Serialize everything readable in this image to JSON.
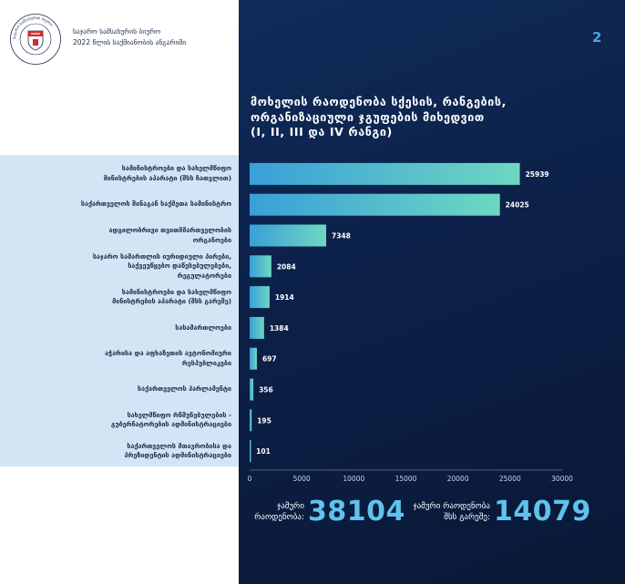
{
  "header": {
    "org_line1": "საჯარო სამსახურის ბიურო",
    "org_line2": "2022 წლის საქმიანობის ანგარიში",
    "page_number": "2",
    "logo_ring_text": "საჯარო სამსახურის ბიურო"
  },
  "colors": {
    "bar_start": "#3a9fd8",
    "bar_end": "#6ed7c2",
    "panel_bg": "#0c2048",
    "accent": "#5fc3ec"
  },
  "chart_data": {
    "type": "bar",
    "orientation": "horizontal",
    "title": "მოხელის რაოდენობა სქესის, რანგების, ორგანიზაციული ჯგუფების მიხედვით (I, II, III და IV რანგი)",
    "title_lines": [
      "მოხელის რაოდენობა სქესის, რანგების,",
      "ორგანიზაციული ჯგუფების მიხედვით",
      "(I, II, III და IV რანგი)"
    ],
    "categories": [
      [
        "სამინისტროები და სახელმწიფო",
        "მინისტრების აპარატი (შსს ჩათვლით)"
      ],
      [
        "საქართველოს შინაგან საქმეთა სამინისტრო"
      ],
      [
        "ადგილობრივი თვითმმართველობის",
        "ორგანოები"
      ],
      [
        "საჯარო სამართლის იურიდიული პირები,",
        "საქვეუწყებო დაწესებულებები,",
        "რეგულატორები"
      ],
      [
        "სამინისტროები და სახელმწიფო",
        "მინისტრების აპარატი (შსს გარეშე)"
      ],
      [
        "სასამართლოები"
      ],
      [
        "აჭარისა და აფხაზეთის ავტონომიური",
        "რესპუბლიკები"
      ],
      [
        "საქართველოს პარლამენტი"
      ],
      [
        "სახელმწიფო რწმუნებულების -",
        "გუბერნატორების ადმინისტრაციები"
      ],
      [
        "საქართველოს მთავრობისა და",
        "პრეზიდენტის ადმინისტრაციები"
      ]
    ],
    "values": [
      25939,
      24025,
      7348,
      2084,
      1914,
      1384,
      697,
      356,
      195,
      101
    ],
    "value_labels": [
      "25939",
      "24025",
      "7348",
      "2084",
      "1914",
      "1384",
      "697",
      "356",
      "195",
      "101"
    ],
    "xlim": [
      0,
      30000
    ],
    "xticks": [
      0,
      5000,
      10000,
      15000,
      20000,
      25000,
      30000
    ],
    "xtick_labels": [
      "0",
      "5000",
      "10000",
      "15000",
      "20000",
      "25000",
      "30000"
    ],
    "grid": false,
    "legend": "none"
  },
  "totals": {
    "total_label_line1": "ჯამური",
    "total_label_line2": "რაოდენობა:",
    "total_value": "38104",
    "mia_label_line1": "ჯამური რაოდენობა",
    "mia_label_line2": "შსს გარეშე:",
    "mia_value": "14079"
  }
}
